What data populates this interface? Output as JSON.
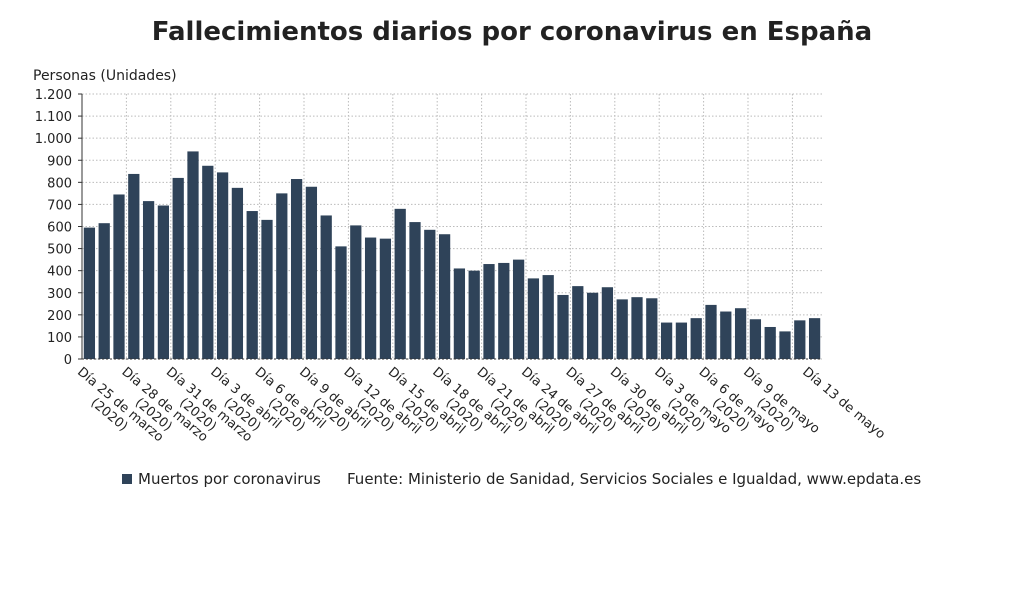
{
  "chart_data": {
    "type": "bar",
    "title": "Fallecimientos diarios por coronavirus en España",
    "y_label": "Personas (Unidades)",
    "source": "Fuente: Ministerio de Sanidad, Servicios Sociales e Igualdad, www.epdata.es",
    "series": [
      {
        "name": "Muertos por coronavirus",
        "color": "#2f4359",
        "values": [
          595,
          615,
          745,
          838,
          715,
          695,
          820,
          940,
          875,
          845,
          775,
          670,
          630,
          750,
          815,
          780,
          650,
          510,
          605,
          550,
          545,
          680,
          620,
          585,
          565,
          410,
          400,
          430,
          435,
          450,
          365,
          380,
          290,
          330,
          300,
          325,
          270,
          280,
          275,
          165,
          165,
          185,
          245,
          215,
          230,
          180,
          145,
          125,
          175,
          185
        ]
      }
    ],
    "categories": [
      "Día 25 de marzo (2020)",
      null,
      null,
      "Día 28 de marzo (2020)",
      null,
      null,
      "Día 31 de marzo (2020)",
      null,
      null,
      "Día 3 de abril (2020)",
      null,
      null,
      "Día 6 de abril (2020)",
      null,
      null,
      "Día 9 de abril (2020)",
      null,
      null,
      "Día 12 de abril (2020)",
      null,
      null,
      "Día 15 de abril (2020)",
      null,
      null,
      "Día 18 de abril (2020)",
      null,
      null,
      "Día 21 de abril (2020)",
      null,
      null,
      "Día 24 de abril (2020)",
      null,
      null,
      "Día 27 de abril (2020)",
      null,
      null,
      "Día 30 de abril (2020)",
      null,
      null,
      "Día 3 de mayo (2020)",
      null,
      null,
      "Día 6 de mayo (2020)",
      null,
      null,
      "Día 9 de mayo (2020)",
      null,
      null,
      null,
      "Día 13 de mayo"
    ],
    "ylim": [
      0,
      1200
    ],
    "yticks": [
      0,
      100,
      200,
      300,
      400,
      500,
      600,
      700,
      800,
      900,
      {
        "value": 1000,
        "label": "1.000"
      },
      {
        "value": 1100,
        "label": "1.100"
      },
      {
        "value": 1200,
        "label": "1.200"
      }
    ],
    "grid": true
  }
}
